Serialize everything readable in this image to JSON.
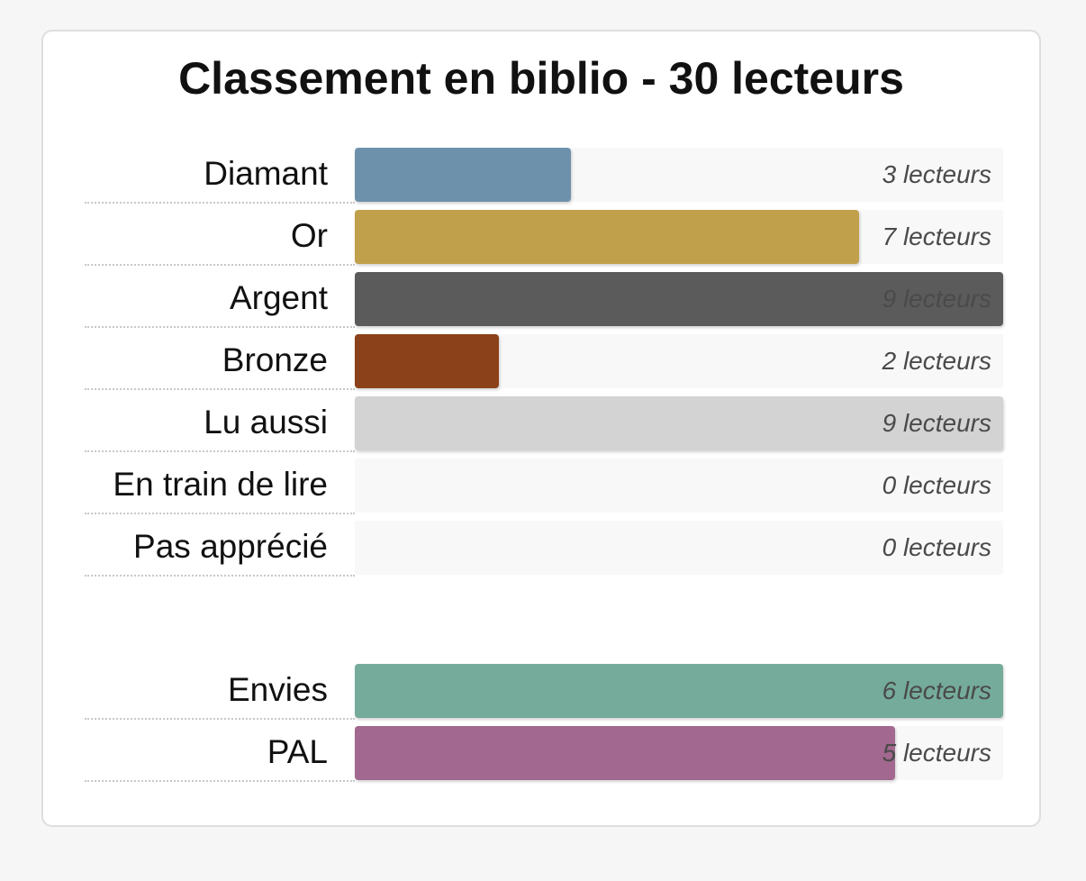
{
  "chart_data": {
    "type": "bar",
    "orientation": "horizontal",
    "title": "Classement en biblio - 30 lecteurs",
    "groups": [
      {
        "categories": [
          "Diamant",
          "Or",
          "Argent",
          "Bronze",
          "Lu aussi",
          "En train de lire",
          "Pas apprécié"
        ],
        "values": [
          3,
          7,
          9,
          2,
          9,
          0,
          0
        ],
        "value_labels": [
          "3 lecteurs",
          "7 lecteurs",
          "9 lecteurs",
          "2 lecteurs",
          "9 lecteurs",
          "0 lecteurs",
          "0 lecteurs"
        ],
        "colors": [
          "#6e91ab",
          "#c0a04a",
          "#5b5b5b",
          "#8b4119",
          "#d3d3d3",
          "#d3d3d3",
          "#d3d3d3"
        ],
        "max": 9
      },
      {
        "categories": [
          "Envies",
          "PAL"
        ],
        "values": [
          6,
          5
        ],
        "value_labels": [
          "6 lecteurs",
          "5 lecteurs"
        ],
        "colors": [
          "#75ab9a",
          "#a2688f"
        ],
        "max": 6
      }
    ],
    "legend": false,
    "grid": false
  }
}
